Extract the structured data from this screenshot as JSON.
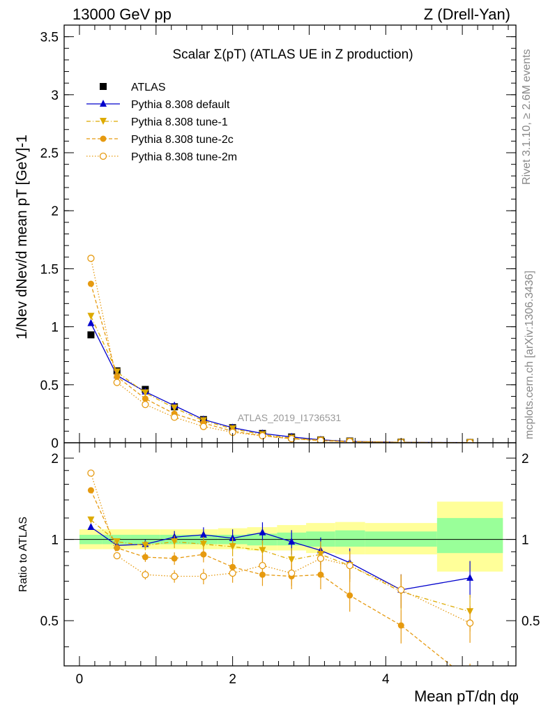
{
  "header": {
    "left": "13000 GeV pp",
    "right": "Z (Drell-Yan)"
  },
  "side_text": {
    "rivet": "Rivet 3.1.10, ≥ 2.6M events",
    "mcplots": "mcplots.cern.ch [arXiv:1306.3436]"
  },
  "main_title": "Scalar Σ(pT) (ATLAS UE in Z production)",
  "watermark": "ATLAS_2019_I1736531",
  "ylabel_top": "1/Nev dNev/d mean pT [GeV]-1",
  "ylabel_bottom": "Ratio to ATLAS",
  "xlabel": "Mean pT/dη dφ",
  "chart_data": [
    {
      "type": "line",
      "panel": "main",
      "xlim": [
        -0.2,
        5.7
      ],
      "ylim": [
        0,
        3.6
      ],
      "yticks": [
        "0",
        "0.5",
        "1",
        "1.5",
        "2",
        "2.5",
        "3",
        "3.5"
      ],
      "x": [
        0.15,
        0.49,
        0.86,
        1.24,
        1.62,
        2.0,
        2.39,
        2.77,
        3.15,
        3.53,
        4.2,
        5.1
      ],
      "series": [
        {
          "name": "ATLAS",
          "color": "#000000",
          "marker": "square",
          "values": [
            0.93,
            0.62,
            0.46,
            0.31,
            0.2,
            0.13,
            0.08,
            0.05,
            0.025,
            0.015,
            0.006,
            0.003
          ]
        },
        {
          "name": "Pythia 8.308 default",
          "color": "#0000cc",
          "marker": "triangle-up",
          "values": [
            1.03,
            0.58,
            0.44,
            0.32,
            0.2,
            0.13,
            0.08,
            0.05,
            0.025,
            0.012,
            0.004,
            0.002
          ]
        },
        {
          "name": "Pythia 8.308 tune-1",
          "color": "#ddaa00",
          "marker": "triangle-down",
          "values": [
            1.09,
            0.61,
            0.43,
            0.3,
            0.19,
            0.12,
            0.07,
            0.04,
            0.022,
            0.011,
            0.004,
            0.0015
          ]
        },
        {
          "name": "Pythia 8.308 tune-2c",
          "color": "#e69a10",
          "marker": "circle",
          "values": [
            1.37,
            0.57,
            0.38,
            0.25,
            0.17,
            0.1,
            0.06,
            0.035,
            0.018,
            0.009,
            0.003,
            0.001
          ]
        },
        {
          "name": "Pythia 8.308 tune-2m",
          "color": "#e69a10",
          "marker": "circle-open",
          "values": [
            1.59,
            0.52,
            0.33,
            0.22,
            0.14,
            0.09,
            0.06,
            0.035,
            0.02,
            0.011,
            0.004,
            0.0015
          ]
        }
      ]
    },
    {
      "type": "line",
      "panel": "ratio",
      "xlim": [
        -0.2,
        5.7
      ],
      "ylim": [
        0.34,
        2.28
      ],
      "log_y": true,
      "yticks": [
        "0.5",
        "1",
        "2"
      ],
      "xticks": [
        "0",
        "2",
        "4"
      ],
      "x": [
        0.15,
        0.49,
        0.86,
        1.24,
        1.62,
        2.0,
        2.39,
        2.77,
        3.15,
        3.53,
        4.2,
        5.1
      ],
      "bands": {
        "bins": [
          [
            0.0,
            0.3
          ],
          [
            0.3,
            0.67
          ],
          [
            0.67,
            1.05
          ],
          [
            1.05,
            1.43
          ],
          [
            1.43,
            1.81
          ],
          [
            1.81,
            2.19
          ],
          [
            2.19,
            2.58
          ],
          [
            2.58,
            2.96
          ],
          [
            2.96,
            3.34
          ],
          [
            3.34,
            3.73
          ],
          [
            3.73,
            4.67
          ],
          [
            4.67,
            5.53
          ]
        ],
        "yellow": [
          [
            0.92,
            1.09
          ],
          [
            0.92,
            1.09
          ],
          [
            0.92,
            1.09
          ],
          [
            0.92,
            1.09
          ],
          [
            0.92,
            1.09
          ],
          [
            0.92,
            1.1
          ],
          [
            0.91,
            1.11
          ],
          [
            0.91,
            1.13
          ],
          [
            0.89,
            1.15
          ],
          [
            0.88,
            1.16
          ],
          [
            0.88,
            1.15
          ],
          [
            0.76,
            1.38
          ]
        ],
        "green": [
          [
            0.96,
            1.04
          ],
          [
            0.96,
            1.04
          ],
          [
            0.96,
            1.04
          ],
          [
            0.96,
            1.04
          ],
          [
            0.96,
            1.04
          ],
          [
            0.96,
            1.04
          ],
          [
            0.95,
            1.05
          ],
          [
            0.95,
            1.06
          ],
          [
            0.94,
            1.07
          ],
          [
            0.94,
            1.08
          ],
          [
            0.94,
            1.07
          ],
          [
            0.89,
            1.2
          ]
        ]
      },
      "series": [
        {
          "name": "Pythia 8.308 default",
          "color": "#0000cc",
          "marker": "triangle-up",
          "values": [
            1.11,
            0.95,
            0.96,
            1.02,
            1.04,
            1.01,
            1.06,
            0.98,
            0.91,
            0.82,
            0.65,
            0.72
          ]
        },
        {
          "name": "Pythia 8.308 tune-1",
          "color": "#ddaa00",
          "marker": "triangle-down",
          "values": [
            1.18,
            0.98,
            0.95,
            0.98,
            0.96,
            0.94,
            0.91,
            0.84,
            0.88,
            0.8,
            0.64,
            0.54
          ]
        },
        {
          "name": "Pythia 8.308 tune-2c",
          "color": "#e69a10",
          "marker": "circle",
          "values": [
            1.52,
            0.93,
            0.86,
            0.85,
            0.88,
            0.79,
            0.74,
            0.73,
            0.74,
            0.62,
            0.48,
            0.3
          ]
        },
        {
          "name": "Pythia 8.308 tune-2m",
          "color": "#e69a10",
          "marker": "circle-open",
          "values": [
            1.76,
            0.87,
            0.74,
            0.73,
            0.73,
            0.75,
            0.8,
            0.75,
            0.85,
            0.8,
            0.65,
            0.49
          ]
        }
      ]
    }
  ]
}
